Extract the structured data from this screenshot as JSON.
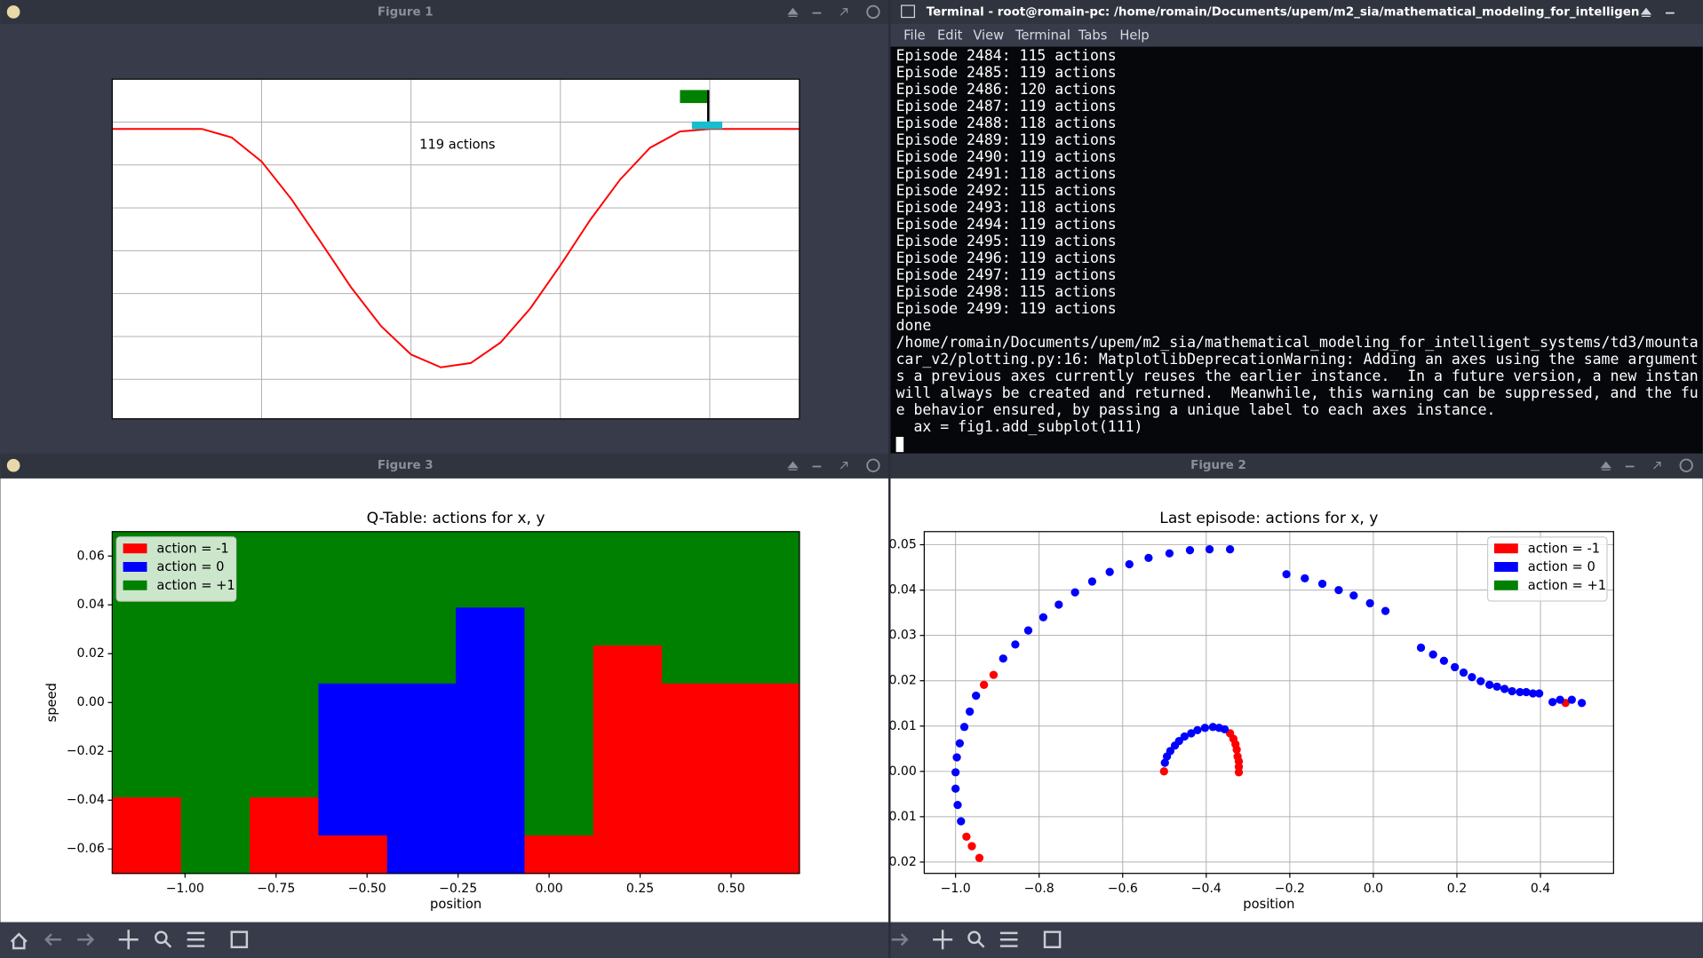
{
  "windows": [
    {
      "title": "Figure 1"
    },
    {
      "title": "Terminal - root@romain-pc: /home/romain/Documents/upem/m2_sia/mathematical_modeling_for_intelligent_systems/t"
    },
    {
      "title": "Figure 3"
    },
    {
      "title": "Figure 2"
    }
  ],
  "terminal": {
    "menu": [
      "File",
      "Edit",
      "View",
      "Terminal",
      "Tabs",
      "Help"
    ],
    "lines": [
      "Episode 2484: 115 actions",
      "Episode 2485: 119 actions",
      "Episode 2486: 120 actions",
      "Episode 2487: 119 actions",
      "Episode 2488: 118 actions",
      "Episode 2489: 119 actions",
      "Episode 2490: 119 actions",
      "Episode 2491: 118 actions",
      "Episode 2492: 115 actions",
      "Episode 2493: 118 actions",
      "Episode 2494: 119 actions",
      "Episode 2495: 119 actions",
      "Episode 2496: 119 actions",
      "Episode 2497: 119 actions",
      "Episode 2498: 115 actions",
      "Episode 2499: 119 actions",
      "done",
      "/home/romain/Documents/upem/m2_sia/mathematical_modeling_for_intelligent_systems/td3/mounta",
      "car_v2/plotting.py:16: MatplotlibDeprecationWarning: Adding an axes using the same argument",
      "s a previous axes currently reuses the earlier instance.  In a future version, a new instan",
      "will always be created and returned.  Meanwhile, this warning can be suppressed, and the fu",
      "e behavior ensured, by passing a unique label to each axes instance.",
      "  ax = fig1.add_subplot(111)"
    ]
  },
  "chart_data": [
    {
      "type": "line",
      "annotation": "119 actions",
      "color": "#ff0000",
      "x": [
        0,
        20,
        40,
        60,
        80,
        100,
        120,
        140,
        160,
        180,
        200,
        220,
        240,
        260,
        280,
        300,
        320,
        340,
        360,
        380,
        400,
        420,
        440,
        460
      ],
      "values": [
        58,
        58,
        58,
        58,
        68,
        96,
        140,
        191,
        243,
        288,
        321,
        336,
        331,
        307,
        267,
        217,
        164,
        117,
        80,
        61,
        58,
        58,
        58,
        58
      ],
      "xlim": [
        0,
        460
      ],
      "ylim": [
        396,
        0
      ],
      "xticks": [
        100,
        200,
        300,
        400
      ],
      "yticks": [
        50,
        100,
        150,
        200,
        250,
        300,
        350
      ],
      "grid": true,
      "tick_labels": false
    },
    {
      "type": "heatmap",
      "title": "Q-Table: actions for x, y",
      "xlabel": "position",
      "ylabel": "speed",
      "xlim": [
        -1.2,
        0.6875
      ],
      "ylim": [
        -0.07,
        0.07
      ],
      "xticks": [
        {
          "value": -1,
          "label": "−1.00"
        },
        {
          "value": -0.75,
          "label": "−0.75"
        },
        {
          "value": -0.5,
          "label": "−0.50"
        },
        {
          "value": -0.25,
          "label": "−0.25"
        },
        {
          "value": 0,
          "label": "0.00"
        },
        0.25,
        {
          "value": 0.5,
          "label": "0.50"
        }
      ],
      "yticks": [
        {
          "value": -0.06,
          "label": "−0.06"
        },
        {
          "value": -0.04,
          "label": "−0.04"
        },
        {
          "value": -0.02,
          "label": "−0.02"
        },
        {
          "value": 0,
          "label": "0.00"
        },
        0.02,
        0.04,
        0.06
      ],
      "classes": [
        {
          "value": -1,
          "name": "action = -1",
          "color": "#ff0000"
        },
        {
          "value": 0,
          "name": "action = 0",
          "color": "#0000ff"
        },
        {
          "value": 1,
          "name": "action = +1",
          "color": "#008000"
        }
      ],
      "legend": "upper left",
      "z": [
        [
          1,
          1,
          1,
          1,
          1,
          1,
          1,
          1,
          1,
          1
        ],
        [
          1,
          1,
          1,
          1,
          1,
          1,
          1,
          1,
          1,
          1
        ],
        [
          1,
          1,
          1,
          1,
          1,
          0,
          1,
          1,
          1,
          1
        ],
        [
          1,
          1,
          1,
          1,
          1,
          0,
          1,
          -1,
          1,
          1
        ],
        [
          1,
          1,
          1,
          0,
          0,
          0,
          1,
          -1,
          -1,
          -1
        ],
        [
          1,
          1,
          1,
          0,
          0,
          0,
          1,
          -1,
          -1,
          -1
        ],
        [
          1,
          1,
          1,
          0,
          0,
          0,
          1,
          -1,
          -1,
          -1
        ],
        [
          -1,
          1,
          -1,
          0,
          0,
          0,
          1,
          -1,
          -1,
          -1
        ],
        [
          -1,
          1,
          -1,
          -1,
          0,
          0,
          -1,
          -1,
          -1,
          -1
        ]
      ]
    },
    {
      "type": "scatter",
      "title": "Last episode: actions for x, y",
      "xlabel": "position",
      "xlim": [
        -1.075,
        0.575
      ],
      "ylim": [
        -0.0225,
        0.0529
      ],
      "xticks": [
        {
          "value": -1,
          "label": "−1.0"
        },
        {
          "value": -0.8,
          "label": "−0.8"
        },
        {
          "value": -0.6,
          "label": "−0.6"
        },
        {
          "value": -0.4,
          "label": "−0.4"
        },
        {
          "value": -0.2,
          "label": "−0.2"
        },
        {
          "value": 0,
          "label": "0.0"
        },
        0.2,
        0.4
      ],
      "yticks": [
        {
          "value": -0.02,
          "label": "−0.02"
        },
        {
          "value": -0.01,
          "label": "−0.01"
        },
        {
          "value": 0,
          "label": "0.00"
        },
        0.01,
        0.02,
        0.03,
        0.04,
        0.05
      ],
      "grid": true,
      "legend": "upper right",
      "series": [
        {
          "name": "action = -1",
          "color": "#ff0000",
          "x": [
            -0.501,
            -0.343,
            -0.335,
            -0.33,
            -0.327,
            -0.325,
            -0.322,
            -0.322,
            -0.322,
            -0.943,
            -0.961,
            -0.974,
            -0.932,
            -0.909,
            0.46
          ],
          "values": [
            0,
            0.0084,
            0.0072,
            0.006,
            0.0048,
            0.0033,
            0.0022,
            0.001,
            -0.0002,
            -0.0191,
            -0.0165,
            -0.0144,
            0.0191,
            0.0213,
            0.0151
          ]
        },
        {
          "name": "action = 0",
          "color": "#0000ff",
          "x": [
            -0.499,
            -0.494,
            -0.486,
            -0.475,
            -0.465,
            -0.452,
            -0.436,
            -0.421,
            -0.403,
            -0.384,
            -0.369,
            -0.356,
            -0.987,
            -0.995,
            -1.0,
            -1.0,
            -0.997,
            -0.99,
            -0.979,
            -0.966,
            -0.951,
            -0.886,
            -0.857,
            -0.826,
            -0.79,
            -0.753,
            -0.714,
            -0.673,
            -0.631,
            -0.584,
            -0.538,
            -0.488,
            -0.439,
            -0.392,
            -0.343,
            -0.208,
            -0.164,
            -0.122,
            -0.083,
            -0.047,
            -0.008,
            0.029,
            0.114,
            0.143,
            0.169,
            0.195,
            0.216,
            0.236,
            0.257,
            0.278,
            0.296,
            0.314,
            0.332,
            0.351,
            0.366,
            0.382,
            0.397,
            0.429,
            0.447,
            0.475,
            0.499
          ],
          "values": [
            0.0019,
            0.0033,
            0.0045,
            0.0057,
            0.0067,
            0.0077,
            0.0084,
            0.0091,
            0.0096,
            0.0098,
            0.0096,
            0.0093,
            -0.011,
            -0.0074,
            -0.0038,
            -0.0002,
            0.0031,
            0.0062,
            0.0098,
            0.0132,
            0.0167,
            0.0249,
            0.028,
            0.0311,
            0.034,
            0.0368,
            0.0395,
            0.0419,
            0.044,
            0.0457,
            0.0471,
            0.0481,
            0.0488,
            0.049,
            0.049,
            0.0435,
            0.0426,
            0.0414,
            0.04,
            0.0388,
            0.0371,
            0.0354,
            0.0273,
            0.0258,
            0.0244,
            0.023,
            0.0218,
            0.0208,
            0.0199,
            0.0191,
            0.0187,
            0.0182,
            0.0177,
            0.0175,
            0.0175,
            0.0172,
            0.0172,
            0.0153,
            0.0158,
            0.0158,
            0.0151
          ]
        },
        {
          "name": "action = +1",
          "color": "#008000",
          "x": [],
          "values": []
        }
      ]
    }
  ]
}
